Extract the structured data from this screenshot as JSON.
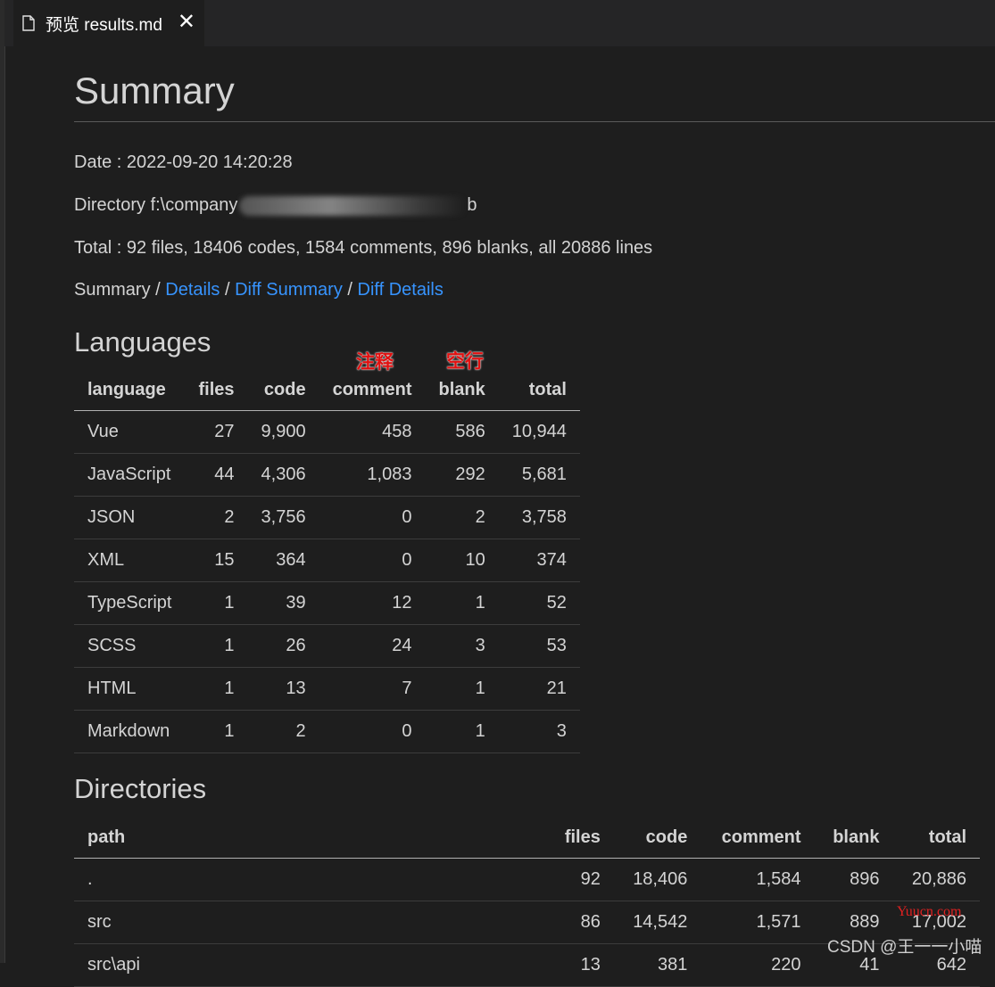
{
  "tab": {
    "icon": "file-icon",
    "title": "预览 results.md",
    "close_label": "✕"
  },
  "page": {
    "title": "Summary",
    "date": "Date : 2022-09-20 14:20:28",
    "directory_prefix": "Directory f:\\company",
    "directory_suffix": "b",
    "total": "Total : 92 files, 18406 codes, 1584 comments, 896 blanks, all 20886 lines",
    "nav": {
      "summary": "Summary",
      "sep": " / ",
      "details": "Details",
      "diff_summary": "Diff Summary",
      "diff_details": "Diff Details"
    }
  },
  "annotations": {
    "comment": "注释",
    "blank": "空行"
  },
  "languages": {
    "heading": "Languages",
    "columns": [
      "language",
      "files",
      "code",
      "comment",
      "blank",
      "total"
    ],
    "rows": [
      [
        "Vue",
        "27",
        "9,900",
        "458",
        "586",
        "10,944"
      ],
      [
        "JavaScript",
        "44",
        "4,306",
        "1,083",
        "292",
        "5,681"
      ],
      [
        "JSON",
        "2",
        "3,756",
        "0",
        "2",
        "3,758"
      ],
      [
        "XML",
        "15",
        "364",
        "0",
        "10",
        "374"
      ],
      [
        "TypeScript",
        "1",
        "39",
        "12",
        "1",
        "52"
      ],
      [
        "SCSS",
        "1",
        "26",
        "24",
        "3",
        "53"
      ],
      [
        "HTML",
        "1",
        "13",
        "7",
        "1",
        "21"
      ],
      [
        "Markdown",
        "1",
        "2",
        "0",
        "1",
        "3"
      ]
    ]
  },
  "directories": {
    "heading": "Directories",
    "columns": [
      "path",
      "files",
      "code",
      "comment",
      "blank",
      "total"
    ],
    "rows": [
      [
        ".",
        "92",
        "18,406",
        "1,584",
        "896",
        "20,886"
      ],
      [
        "src",
        "86",
        "14,542",
        "1,571",
        "889",
        "17,002"
      ],
      [
        "src\\api",
        "13",
        "381",
        "220",
        "41",
        "642"
      ]
    ]
  },
  "watermarks": {
    "site": "Yuucn.com",
    "author": "CSDN @王一一小喵"
  },
  "colors": {
    "link": "#3794ff",
    "annotation": "#e01010",
    "background": "#1e1e1e"
  }
}
